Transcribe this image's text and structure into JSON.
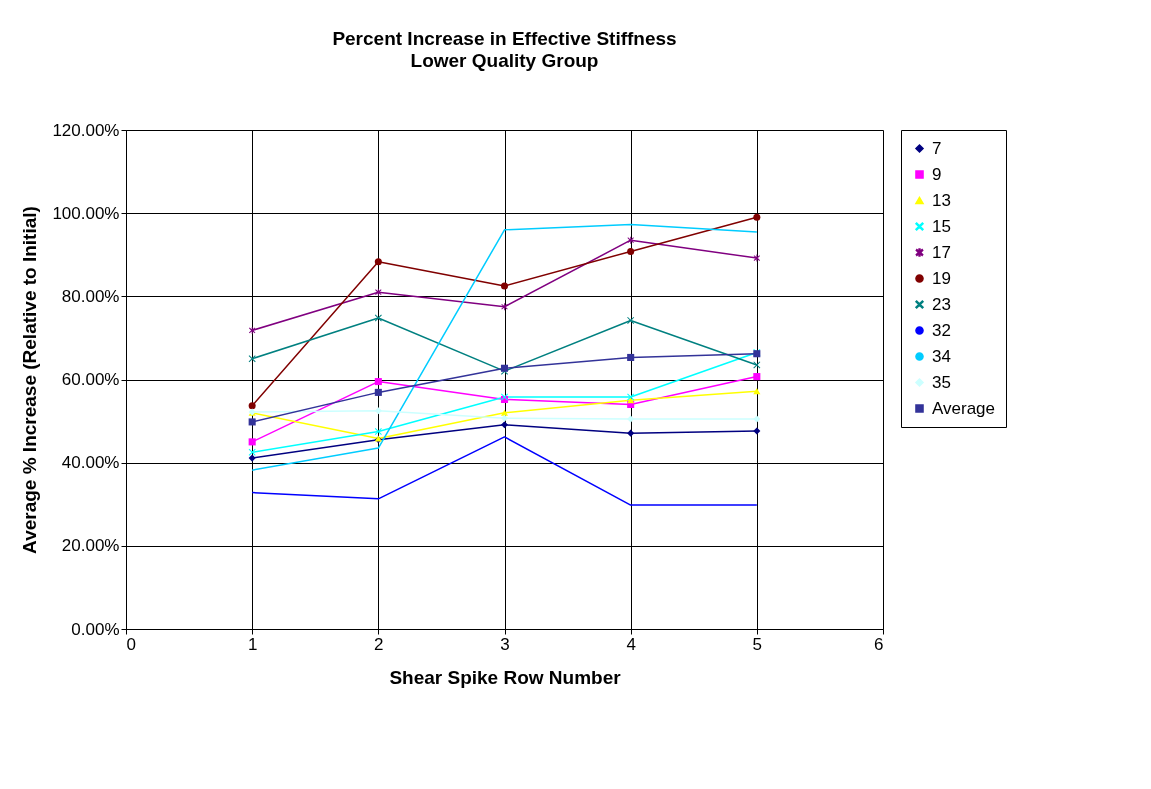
{
  "chart_data": {
    "type": "line",
    "title": "Percent Increase in Effective Stiffness",
    "subtitle": "Lower Quality Group",
    "xlabel": "Shear Spike Row Number",
    "ylabel": "Average % Increase (Relative to Initial)",
    "x": [
      1,
      2,
      3,
      4,
      5
    ],
    "series": [
      {
        "name": "7",
        "color": "#000080",
        "marker": "diamond",
        "values": [
          41.1,
          45.5,
          49.1,
          47.1,
          47.6
        ]
      },
      {
        "name": "9",
        "color": "#ff00ff",
        "marker": "square",
        "values": [
          45.0,
          59.5,
          55.2,
          54.0,
          60.7
        ]
      },
      {
        "name": "13",
        "color": "#ffff00",
        "marker": "triangle",
        "values": [
          52.0,
          45.8,
          52.0,
          55.0,
          57.2
        ]
      },
      {
        "name": "15",
        "color": "#00ffff",
        "marker": "cross",
        "values": [
          42.5,
          47.5,
          55.8,
          55.8,
          66.5
        ]
      },
      {
        "name": "17",
        "color": "#800080",
        "marker": "star",
        "values": [
          71.8,
          81.0,
          77.5,
          93.5,
          89.2
        ]
      },
      {
        "name": "19",
        "color": "#800000",
        "marker": "circle",
        "values": [
          53.7,
          88.3,
          82.5,
          90.8,
          99.0
        ]
      },
      {
        "name": "23",
        "color": "#008080",
        "marker": "cross",
        "values": [
          65.0,
          74.8,
          62.0,
          74.2,
          63.5
        ]
      },
      {
        "name": "32",
        "color": "#0000ff",
        "marker": "none",
        "values": [
          32.8,
          31.3,
          46.2,
          29.8,
          29.8
        ]
      },
      {
        "name": "34",
        "color": "#00ccff",
        "marker": "none",
        "values": [
          38.2,
          43.5,
          96.0,
          97.3,
          95.5
        ]
      },
      {
        "name": "35",
        "color": "#ccffff",
        "marker": "diamond",
        "values": [
          52.2,
          52.5,
          50.7,
          50.5,
          50.5
        ]
      },
      {
        "name": "Average",
        "color": "#333399",
        "marker": "square",
        "values": [
          49.8,
          56.9,
          62.7,
          65.3,
          66.2
        ]
      }
    ],
    "xlim": [
      0,
      6
    ],
    "xticks": [
      0,
      1,
      2,
      3,
      4,
      5,
      6
    ],
    "ylim": [
      0,
      120
    ],
    "yticks": [
      {
        "value": 0,
        "label": "0.00%"
      },
      {
        "value": 20,
        "label": "20.00%"
      },
      {
        "value": 40,
        "label": "40.00%"
      },
      {
        "value": 60,
        "label": "60.00%"
      },
      {
        "value": 80,
        "label": "80.00%"
      },
      {
        "value": 100,
        "label": "100.00%"
      },
      {
        "value": 120,
        "label": "120.00%"
      }
    ],
    "grid": true,
    "legend": "right",
    "line_style": "solid"
  }
}
